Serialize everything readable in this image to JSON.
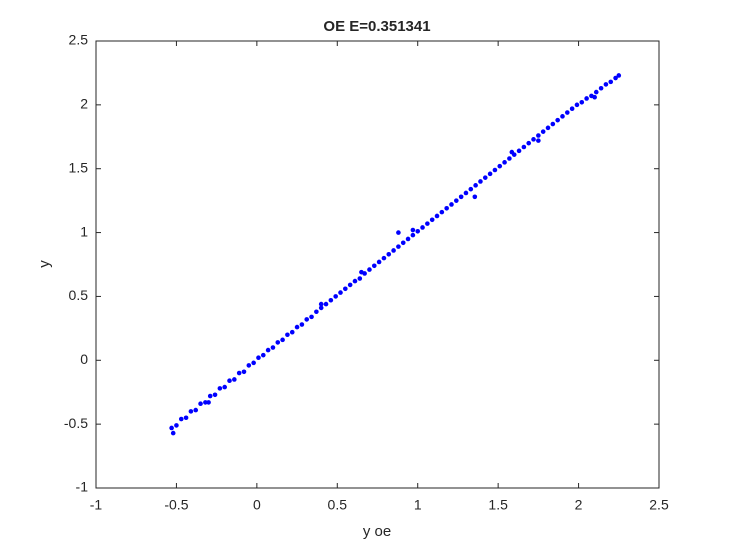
{
  "chart_data": {
    "type": "scatter",
    "title": "OE E=0.351341",
    "x_label": "y oe",
    "y_label": "y",
    "color": "#0000ff",
    "grid": false,
    "box": true,
    "xlim": [
      -1,
      2.5
    ],
    "ylim": [
      -1,
      2.5
    ],
    "xticks": [
      -1,
      -0.5,
      0,
      0.5,
      1,
      1.5,
      2,
      2.5
    ],
    "yticks": [
      -1,
      -0.5,
      0,
      0.5,
      1,
      1.5,
      2,
      2.5
    ],
    "x": [
      -0.53,
      -0.5,
      -0.47,
      -0.44,
      -0.41,
      -0.38,
      -0.35,
      -0.32,
      -0.29,
      -0.26,
      -0.23,
      -0.2,
      -0.17,
      -0.14,
      -0.11,
      -0.08,
      -0.05,
      -0.02,
      0.01,
      0.04,
      0.07,
      0.1,
      0.13,
      0.16,
      0.19,
      0.22,
      0.25,
      0.28,
      0.31,
      0.34,
      0.37,
      0.4,
      0.43,
      0.46,
      0.49,
      0.52,
      0.55,
      0.58,
      0.61,
      0.64,
      0.67,
      0.7,
      0.73,
      0.76,
      0.79,
      0.82,
      0.85,
      0.88,
      0.91,
      0.94,
      0.97,
      1.0,
      1.03,
      1.06,
      1.09,
      1.12,
      1.15,
      1.18,
      1.21,
      1.24,
      1.27,
      1.3,
      1.33,
      1.36,
      1.39,
      1.42,
      1.45,
      1.48,
      1.51,
      1.54,
      1.57,
      1.6,
      1.63,
      1.66,
      1.69,
      1.72,
      1.75,
      1.78,
      1.81,
      1.84,
      1.87,
      1.9,
      1.93,
      1.96,
      1.99,
      2.02,
      2.05,
      2.08,
      2.11,
      2.14,
      2.17,
      2.2,
      2.23,
      2.25,
      1.355,
      1.585,
      0.88,
      -0.52,
      0.65,
      -0.3,
      0.4,
      1.75,
      2.1,
      0.97
    ],
    "values": [
      -0.53,
      -0.51,
      -0.46,
      -0.45,
      -0.4,
      -0.39,
      -0.34,
      -0.33,
      -0.28,
      -0.27,
      -0.22,
      -0.21,
      -0.16,
      -0.15,
      -0.1,
      -0.09,
      -0.04,
      -0.02,
      0.02,
      0.04,
      0.08,
      0.1,
      0.14,
      0.16,
      0.2,
      0.22,
      0.26,
      0.28,
      0.32,
      0.34,
      0.38,
      0.41,
      0.44,
      0.47,
      0.5,
      0.53,
      0.56,
      0.59,
      0.62,
      0.64,
      0.68,
      0.71,
      0.74,
      0.77,
      0.8,
      0.83,
      0.86,
      0.89,
      0.92,
      0.95,
      0.98,
      1.01,
      1.04,
      1.07,
      1.1,
      1.13,
      1.16,
      1.19,
      1.22,
      1.25,
      1.28,
      1.31,
      1.34,
      1.37,
      1.4,
      1.43,
      1.46,
      1.49,
      1.52,
      1.55,
      1.58,
      1.61,
      1.64,
      1.67,
      1.7,
      1.73,
      1.76,
      1.79,
      1.82,
      1.85,
      1.88,
      1.91,
      1.94,
      1.97,
      2.0,
      2.02,
      2.05,
      2.07,
      2.1,
      2.13,
      2.16,
      2.18,
      2.21,
      2.23,
      1.28,
      1.63,
      1.0,
      -0.57,
      0.69,
      -0.33,
      0.44,
      1.72,
      2.06,
      1.02
    ]
  }
}
